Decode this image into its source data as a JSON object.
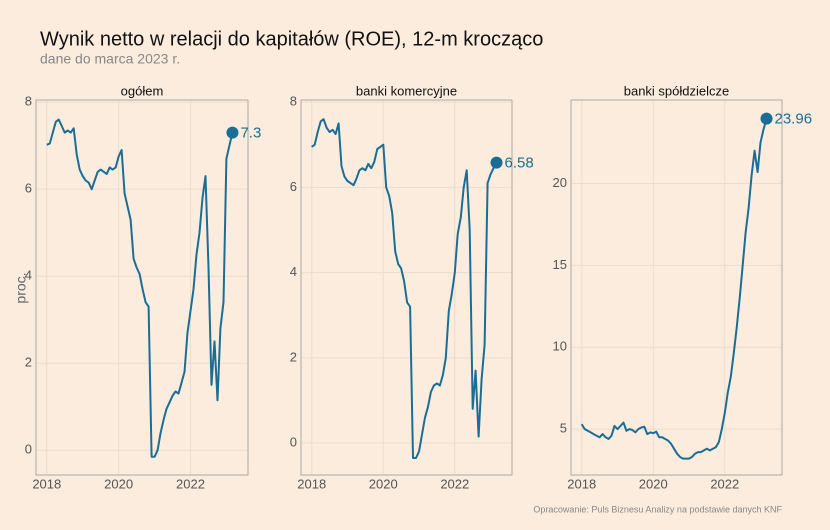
{
  "title": "Wynik netto w relacji do kapitałów (ROE), 12-m krocząco",
  "subtitle": "dane do marca 2023 r.",
  "y_label": "proc.",
  "caption": "Opracowanie: Puls Biznesu Analizy na podstawie danych KNF",
  "chart_data": [
    {
      "type": "line",
      "title": "ogółem",
      "color": "#1a6e96",
      "grid": true,
      "x": [
        2018,
        2018.083,
        2018.167,
        2018.25,
        2018.333,
        2018.417,
        2018.5,
        2018.583,
        2018.667,
        2018.75,
        2018.833,
        2018.917,
        2019,
        2019.083,
        2019.167,
        2019.25,
        2019.333,
        2019.417,
        2019.5,
        2019.583,
        2019.667,
        2019.75,
        2019.833,
        2019.917,
        2020,
        2020.083,
        2020.167,
        2020.25,
        2020.333,
        2020.417,
        2020.5,
        2020.583,
        2020.667,
        2020.75,
        2020.833,
        2020.917,
        2021,
        2021.083,
        2021.167,
        2021.25,
        2021.333,
        2021.417,
        2021.5,
        2021.583,
        2021.667,
        2021.75,
        2021.833,
        2021.917,
        2022,
        2022.083,
        2022.167,
        2022.25,
        2022.333,
        2022.417,
        2022.5,
        2022.583,
        2022.667,
        2022.75,
        2022.833,
        2022.917,
        2023,
        2023.083,
        2023.167
      ],
      "values": [
        7.02,
        7.05,
        7.3,
        7.55,
        7.6,
        7.45,
        7.3,
        7.35,
        7.3,
        7.4,
        6.8,
        6.45,
        6.3,
        6.2,
        6.15,
        6.0,
        6.2,
        6.4,
        6.45,
        6.4,
        6.35,
        6.5,
        6.45,
        6.5,
        6.75,
        6.9,
        5.9,
        5.6,
        5.3,
        4.4,
        4.2,
        4.05,
        3.7,
        3.4,
        3.3,
        -0.15,
        -0.15,
        0.0,
        0.4,
        0.7,
        0.95,
        1.1,
        1.25,
        1.35,
        1.3,
        1.55,
        1.8,
        2.7,
        3.2,
        3.7,
        4.5,
        5.0,
        5.8,
        6.3,
        4.2,
        1.5,
        2.5,
        1.15,
        2.8,
        3.4,
        6.7,
        7.0,
        7.3
      ],
      "xlim": [
        2017.7,
        2023.6
      ],
      "xticks": [
        2018,
        2020,
        2022
      ],
      "ylim": [
        -0.57,
        8.05
      ],
      "yticks": [
        0,
        2,
        4,
        6,
        8
      ]
    },
    {
      "type": "line",
      "title": "banki komercyjne",
      "color": "#1a6e96",
      "grid": true,
      "x": [
        2018,
        2018.083,
        2018.167,
        2018.25,
        2018.333,
        2018.417,
        2018.5,
        2018.583,
        2018.667,
        2018.75,
        2018.833,
        2018.917,
        2019,
        2019.083,
        2019.167,
        2019.25,
        2019.333,
        2019.417,
        2019.5,
        2019.583,
        2019.667,
        2019.75,
        2019.833,
        2019.917,
        2020,
        2020.083,
        2020.167,
        2020.25,
        2020.333,
        2020.417,
        2020.5,
        2020.583,
        2020.667,
        2020.75,
        2020.833,
        2020.917,
        2021,
        2021.083,
        2021.167,
        2021.25,
        2021.333,
        2021.417,
        2021.5,
        2021.583,
        2021.667,
        2021.75,
        2021.833,
        2021.917,
        2022,
        2022.083,
        2022.167,
        2022.25,
        2022.333,
        2022.417,
        2022.5,
        2022.583,
        2022.667,
        2022.75,
        2022.833,
        2022.917,
        2023,
        2023.083,
        2023.167
      ],
      "values": [
        6.95,
        7.0,
        7.3,
        7.55,
        7.6,
        7.4,
        7.3,
        7.35,
        7.25,
        7.5,
        6.5,
        6.25,
        6.15,
        6.1,
        6.05,
        6.2,
        6.4,
        6.45,
        6.4,
        6.55,
        6.45,
        6.6,
        6.9,
        6.95,
        7.0,
        6.0,
        5.8,
        5.4,
        4.5,
        4.2,
        4.1,
        3.8,
        3.3,
        3.2,
        -0.35,
        -0.35,
        -0.2,
        0.2,
        0.6,
        0.85,
        1.2,
        1.35,
        1.4,
        1.35,
        1.6,
        2.0,
        3.1,
        3.5,
        4.0,
        4.9,
        5.3,
        6.0,
        6.4,
        5.0,
        0.8,
        1.7,
        0.15,
        1.5,
        2.3,
        6.1,
        6.3,
        6.45,
        6.58
      ],
      "xlim": [
        2017.7,
        2023.6
      ],
      "xticks": [
        2018,
        2020,
        2022
      ],
      "ylim": [
        -0.75,
        8.05
      ],
      "yticks": [
        0,
        2,
        4,
        6,
        8
      ]
    },
    {
      "type": "line",
      "title": "banki spółdzielcze",
      "color": "#1a6e96",
      "grid": true,
      "x": [
        2018,
        2018.083,
        2018.167,
        2018.25,
        2018.333,
        2018.417,
        2018.5,
        2018.583,
        2018.667,
        2018.75,
        2018.833,
        2018.917,
        2019,
        2019.083,
        2019.167,
        2019.25,
        2019.333,
        2019.417,
        2019.5,
        2019.583,
        2019.667,
        2019.75,
        2019.833,
        2019.917,
        2020,
        2020.083,
        2020.167,
        2020.25,
        2020.333,
        2020.417,
        2020.5,
        2020.583,
        2020.667,
        2020.75,
        2020.833,
        2020.917,
        2021,
        2021.083,
        2021.167,
        2021.25,
        2021.333,
        2021.417,
        2021.5,
        2021.583,
        2021.667,
        2021.75,
        2021.833,
        2021.917,
        2022,
        2022.083,
        2022.167,
        2022.25,
        2022.333,
        2022.417,
        2022.5,
        2022.583,
        2022.667,
        2022.75,
        2022.833,
        2022.917,
        2023,
        2023.083,
        2023.167
      ],
      "values": [
        5.3,
        5.0,
        4.9,
        4.8,
        4.7,
        4.6,
        4.5,
        4.7,
        4.5,
        4.4,
        4.6,
        5.2,
        5.0,
        5.2,
        5.4,
        4.9,
        5.0,
        4.95,
        4.8,
        5.0,
        5.1,
        5.15,
        4.7,
        4.8,
        4.75,
        4.85,
        4.5,
        4.5,
        4.4,
        4.3,
        4.1,
        3.8,
        3.5,
        3.3,
        3.2,
        3.2,
        3.2,
        3.3,
        3.5,
        3.6,
        3.6,
        3.7,
        3.8,
        3.7,
        3.8,
        3.9,
        4.2,
        5.0,
        6.0,
        7.2,
        8.2,
        9.6,
        11.2,
        13.0,
        15.0,
        17.0,
        18.5,
        20.5,
        22.0,
        20.7,
        22.5,
        23.3,
        23.96
      ],
      "xlim": [
        2017.7,
        2023.6
      ],
      "xticks": [
        2018,
        2020,
        2022
      ],
      "ylim": [
        2.2,
        25.1
      ],
      "yticks": [
        5,
        10,
        15,
        20
      ]
    }
  ]
}
